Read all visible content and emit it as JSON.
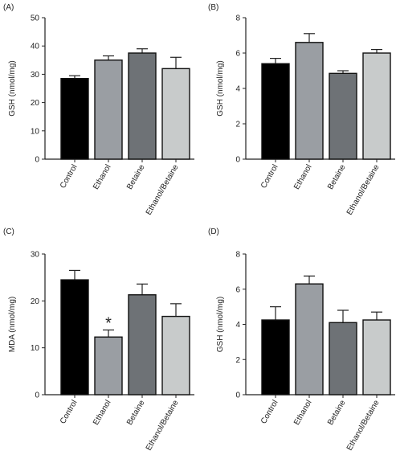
{
  "chart_data": [
    {
      "panel": "(A)",
      "type": "bar",
      "ylabel": "GSH (nmol/mg)",
      "ylim": [
        0,
        50
      ],
      "yticks": [
        "0",
        "10",
        "20",
        "30",
        "40",
        "50"
      ],
      "categories": [
        "Control",
        "Ethanol",
        "Betaine",
        "Ethanol/Betaine"
      ],
      "values": [
        28.5,
        35.0,
        37.5,
        32.0
      ],
      "errors": [
        1.0,
        1.5,
        1.5,
        4.0
      ],
      "colors": [
        "#000000",
        "#9a9ea3",
        "#6e7276",
        "#c8cbcb"
      ],
      "annotations": []
    },
    {
      "panel": "(B)",
      "type": "bar",
      "ylabel": "GSH (nmol/mg)",
      "ylim": [
        0,
        8
      ],
      "yticks": [
        "0",
        "2",
        "4",
        "6",
        "8"
      ],
      "categories": [
        "Control",
        "Ethanol",
        "Betaine",
        "Ethanol/Betaine"
      ],
      "values": [
        5.4,
        6.6,
        4.85,
        6.0
      ],
      "errors": [
        0.3,
        0.5,
        0.15,
        0.2
      ],
      "colors": [
        "#000000",
        "#9a9ea3",
        "#6e7276",
        "#c8cbcb"
      ],
      "annotations": []
    },
    {
      "panel": "(C)",
      "type": "bar",
      "ylabel": "MDA (nmol/mg)",
      "ylim": [
        0,
        30
      ],
      "yticks": [
        "0",
        "10",
        "20",
        "30"
      ],
      "categories": [
        "Control",
        "Ethanol",
        "Betaine",
        "Ethanol/Betaine"
      ],
      "values": [
        24.5,
        12.3,
        21.3,
        16.7
      ],
      "errors": [
        2.0,
        1.5,
        2.3,
        2.7
      ],
      "colors": [
        "#000000",
        "#9a9ea3",
        "#6e7276",
        "#c8cbcb"
      ],
      "annotations": [
        {
          "category": "Ethanol",
          "text": "*"
        }
      ]
    },
    {
      "panel": "(D)",
      "type": "bar",
      "ylabel": "GSH (nmol/mg)",
      "ylim": [
        0,
        8
      ],
      "yticks": [
        "0",
        "2",
        "4",
        "6",
        "8"
      ],
      "categories": [
        "Control",
        "Ethanol",
        "Betaine",
        "Ethanol/Betaine"
      ],
      "values": [
        4.25,
        6.3,
        4.1,
        4.25
      ],
      "errors": [
        0.75,
        0.45,
        0.7,
        0.45
      ],
      "colors": [
        "#000000",
        "#9a9ea3",
        "#6e7276",
        "#c8cbcb"
      ],
      "annotations": []
    }
  ]
}
